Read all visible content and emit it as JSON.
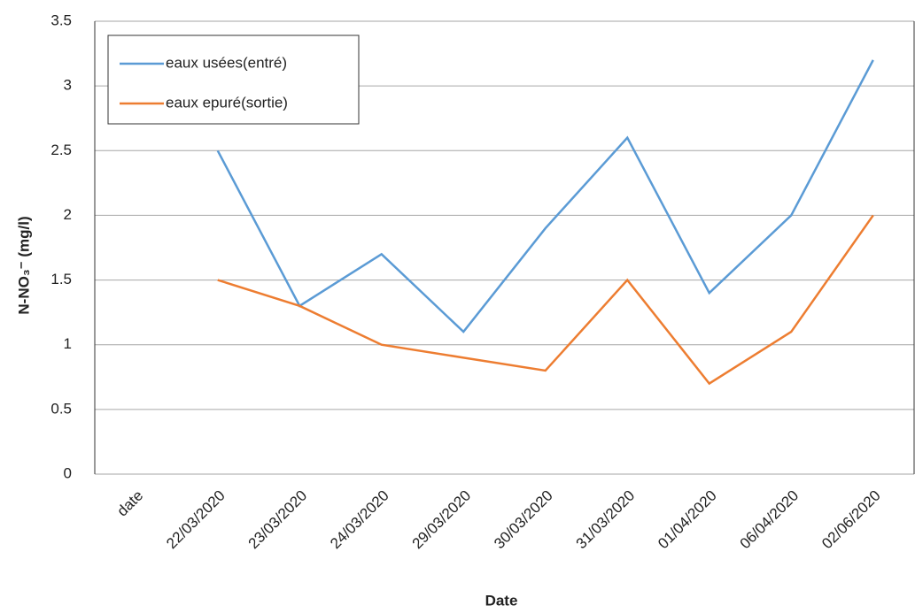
{
  "chart_data": {
    "type": "line",
    "ylabel": "N-NO₃⁻ (mg/l)",
    "xlabel": "Date",
    "categories": [
      "date",
      "22/03/2020",
      "23/03/2020",
      "24/03/2020",
      "29/03/2020",
      "30/03/2020",
      "31/03/2020",
      "01/04/2020",
      "06/04/2020",
      "02/06/2020"
    ],
    "series": [
      {
        "name": "eaux usées(entré)",
        "color": "#5b9bd5",
        "values": [
          null,
          2.5,
          1.3,
          1.7,
          1.1,
          1.9,
          2.6,
          1.4,
          2.0,
          3.2
        ]
      },
      {
        "name": "eaux epuré(sortie)",
        "color": "#ed7d31",
        "values": [
          null,
          1.5,
          1.3,
          1.0,
          0.9,
          0.8,
          1.5,
          0.7,
          1.1,
          2.0
        ]
      }
    ],
    "ylim": [
      0,
      3.5
    ],
    "yticks": [
      0,
      0.5,
      1,
      1.5,
      2,
      2.5,
      3,
      3.5
    ],
    "grid": true,
    "legend": "top-left"
  }
}
